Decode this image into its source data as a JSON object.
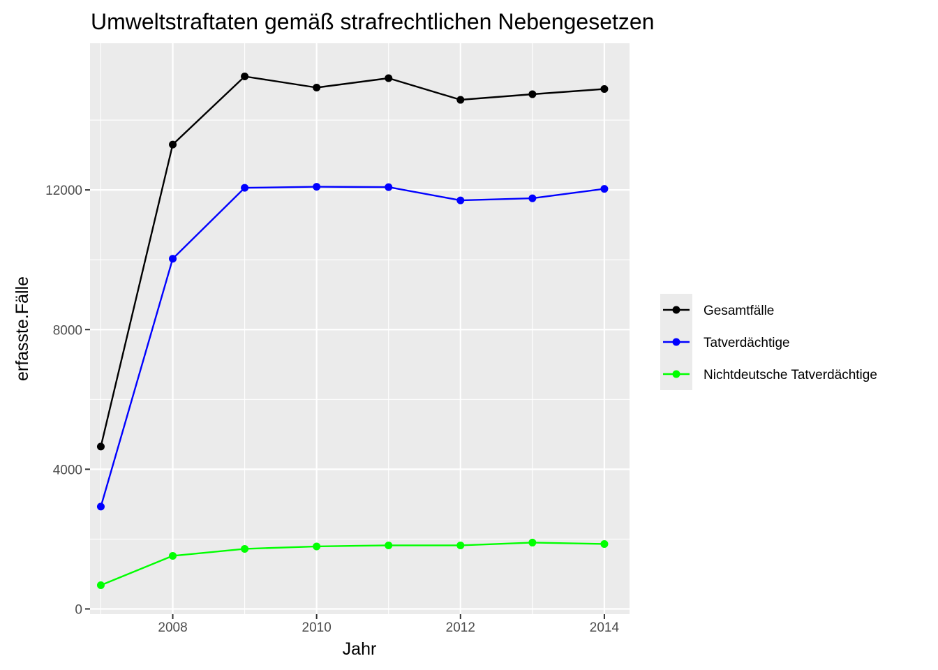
{
  "chart_data": {
    "type": "line",
    "title": "Umweltstraftaten gemäß strafrechtlichen Nebengesetzen",
    "xlabel": "Jahr",
    "ylabel": "erfasste.Fälle",
    "x": [
      2007,
      2008,
      2009,
      2010,
      2011,
      2012,
      2013,
      2014
    ],
    "xlim": [
      2006.85,
      2014.35
    ],
    "ylim": [
      -150,
      16200
    ],
    "xticks": [
      2008,
      2010,
      2012,
      2014
    ],
    "yticks": [
      0,
      4000,
      8000,
      12000
    ],
    "xtick_labels": [
      "2008",
      "2010",
      "2012",
      "2014"
    ],
    "ytick_labels": [
      "0",
      "4000",
      "8000",
      "12000"
    ],
    "grid": true,
    "legend_position": "right",
    "series": [
      {
        "name": "Gesamtfälle",
        "color": "#000000",
        "values": [
          4650,
          13300,
          15250,
          14930,
          15200,
          14580,
          14740,
          14890
        ]
      },
      {
        "name": "Tatverdächtige",
        "color": "#0000ff",
        "values": [
          2930,
          10030,
          12060,
          12090,
          12080,
          11700,
          11760,
          12030
        ]
      },
      {
        "name": "Nichtdeutsche Tatverdächtige",
        "color": "#00ff00",
        "values": [
          680,
          1520,
          1720,
          1790,
          1820,
          1820,
          1900,
          1860
        ]
      }
    ]
  }
}
